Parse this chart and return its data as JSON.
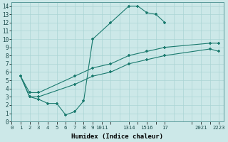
{
  "line1_x": [
    1,
    2,
    3,
    4,
    5,
    6,
    7,
    8,
    9,
    11,
    13,
    14,
    15,
    16,
    17
  ],
  "line1_y": [
    5.5,
    3.0,
    2.7,
    2.2,
    2.2,
    0.8,
    1.2,
    2.5,
    10.0,
    12.0,
    14.0,
    14.0,
    13.2,
    13.0,
    12.0
  ],
  "line2_x": [
    1,
    2,
    3,
    7,
    9,
    11,
    13,
    15,
    17,
    22,
    23
  ],
  "line2_y": [
    5.5,
    3.5,
    3.5,
    5.5,
    6.5,
    7.0,
    8.0,
    8.5,
    9.0,
    9.5,
    9.5
  ],
  "line3_x": [
    1,
    2,
    3,
    7,
    9,
    11,
    13,
    15,
    17,
    22,
    23
  ],
  "line3_y": [
    5.5,
    3.0,
    3.0,
    4.5,
    5.5,
    6.0,
    7.0,
    7.5,
    8.0,
    8.8,
    8.5
  ],
  "line_color": "#1a7a6e",
  "bg_color": "#cce8e8",
  "grid_major_color": "#aad4d4",
  "grid_minor_color": "#c0e0e0",
  "xlabel": "Humidex (Indice chaleur)",
  "xlim": [
    0,
    23.5
  ],
  "ylim": [
    0,
    14.5
  ],
  "yticks": [
    0,
    1,
    2,
    3,
    4,
    5,
    6,
    7,
    8,
    9,
    10,
    11,
    12,
    13,
    14
  ],
  "marker": "+"
}
